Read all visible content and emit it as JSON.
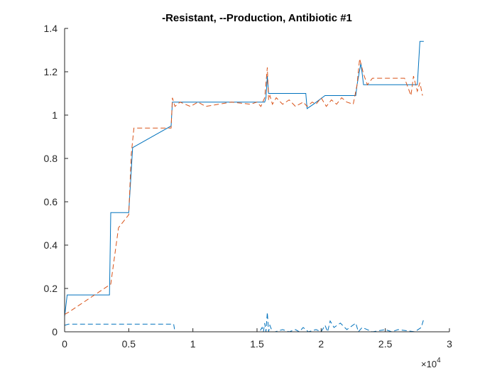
{
  "chart_data": {
    "type": "line",
    "title": "-Resistant, --Production, Antibiotic #1",
    "xlabel": "",
    "ylabel": "",
    "xlim": [
      0,
      30000
    ],
    "ylim": [
      0,
      1.4
    ],
    "x_ticks": [
      0,
      5000,
      10000,
      15000,
      20000,
      25000,
      30000
    ],
    "x_tick_labels": [
      "0",
      "0.5",
      "1",
      "1.5",
      "2",
      "2.5",
      "3"
    ],
    "x_multiplier_base": "×10",
    "x_multiplier_exp": "4",
    "y_ticks": [
      0,
      0.2,
      0.4,
      0.6,
      0.8,
      1.0,
      1.2,
      1.4
    ],
    "y_tick_labels": [
      "0",
      "0.2",
      "0.4",
      "0.6",
      "0.8",
      "1",
      "1.2",
      "1.4"
    ],
    "grid": false,
    "legend": "none",
    "colors": {
      "blue": "#0072BD",
      "orange": "#D95319",
      "axis": "#262626"
    },
    "series": [
      {
        "style": "solid",
        "color": "#0072BD",
        "x": [
          0,
          200,
          3500,
          3600,
          5000,
          5300,
          8300,
          8400,
          15600,
          15700,
          15800,
          15900,
          16000,
          18800,
          18900,
          19400,
          20300,
          22700,
          22800,
          23100,
          23300,
          27500,
          27700,
          28000
        ],
        "y": [
          0.07,
          0.17,
          0.17,
          0.55,
          0.55,
          0.85,
          0.95,
          1.06,
          1.06,
          1.08,
          1.18,
          1.1,
          1.1,
          1.1,
          1.03,
          1.05,
          1.09,
          1.09,
          1.14,
          1.24,
          1.14,
          1.14,
          1.34,
          1.34
        ]
      },
      {
        "style": "dashed",
        "color": "#D95319",
        "x": [
          0,
          300,
          3600,
          4200,
          5000,
          5200,
          5400,
          8300,
          8400,
          8600,
          9000,
          9400,
          9800,
          10400,
          11000,
          13000,
          14500,
          15000,
          15300,
          15600,
          15800,
          15900,
          16000,
          16200,
          16500,
          17000,
          17500,
          18000,
          18600,
          18900,
          19300,
          19600,
          20000,
          20400,
          20800,
          21200,
          21600,
          22000,
          22500,
          22800,
          23000,
          23300,
          23600,
          24000,
          26500,
          27000,
          27200,
          27500,
          27700,
          27900
        ],
        "y": [
          0.08,
          0.09,
          0.22,
          0.48,
          0.54,
          0.82,
          0.94,
          0.94,
          1.08,
          1.04,
          1.06,
          1.05,
          1.04,
          1.06,
          1.04,
          1.06,
          1.05,
          1.06,
          1.04,
          1.08,
          1.22,
          1.07,
          1.09,
          1.05,
          1.08,
          1.05,
          1.07,
          1.04,
          1.06,
          1.04,
          1.06,
          1.05,
          1.08,
          1.04,
          1.07,
          1.05,
          1.08,
          1.06,
          1.05,
          1.14,
          1.26,
          1.19,
          1.14,
          1.17,
          1.17,
          1.09,
          1.18,
          1.11,
          1.15,
          1.09
        ]
      },
      {
        "style": "dashed",
        "color": "#0072BD",
        "x": [
          0,
          300,
          8500,
          8600,
          9400,
          9500,
          15200,
          15400,
          15500,
          15600,
          15700,
          15800,
          15900,
          16000,
          16200,
          16400,
          17000,
          17500,
          18000,
          18300,
          18600,
          19000,
          19600,
          20000,
          20300,
          20500,
          20700,
          21000,
          21500,
          22000,
          22700,
          22900,
          23200,
          24000,
          25000,
          25500,
          26000,
          27300,
          27800,
          28000
        ],
        "y": [
          0.03,
          0.035,
          0.035,
          0.0,
          0.0,
          0.0,
          0.0,
          0.02,
          0.0,
          0.04,
          0.0,
          0.09,
          0.0,
          0.03,
          0.0,
          0.0,
          0.01,
          0.0,
          0.01,
          0.0,
          0.02,
          0.0,
          0.01,
          0.0,
          0.03,
          0.0,
          0.05,
          0.02,
          0.04,
          0.01,
          0.04,
          0.0,
          0.02,
          0.0,
          0.01,
          0.0,
          0.01,
          0.0,
          0.02,
          0.06
        ]
      },
      {
        "style": "solid",
        "color": "#D95319",
        "x": [
          0,
          28000
        ],
        "y": [
          0.0,
          0.0
        ]
      }
    ]
  }
}
